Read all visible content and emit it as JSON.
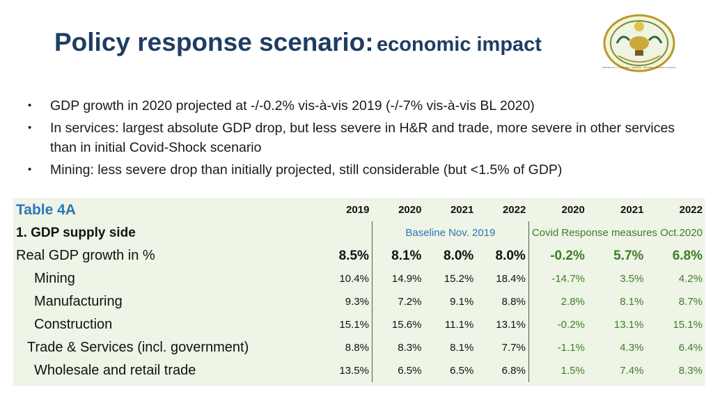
{
  "slide": {
    "title_main": "Policy response scenario:",
    "title_sub": "economic impact"
  },
  "bullets": [
    "GDP growth in 2020 projected at -/-0.2% vis-à-vis 2019 (-/-7% vis-à-vis BL 2020)",
    "In services: largest absolute GDP drop, but less severe in H&R and trade, more severe in other services than in initial Covid-Shock scenario",
    "Mining: less severe drop than initially projected, still considerable (but <1.5% of GDP)"
  ],
  "bullet_symbol": "•",
  "table": {
    "title": "Table 4A",
    "years": [
      "2019",
      "2020",
      "2021",
      "2022",
      "2020",
      "2021",
      "2022"
    ],
    "section_label": "1. GDP supply side",
    "baseline_label": "Baseline Nov. 2019",
    "covid_label": "Covid Response measures Oct.2020",
    "rows": [
      {
        "label": "Real GDP growth in %",
        "values": [
          "8.5%",
          "8.1%",
          "8.0%",
          "8.0%",
          "-0.2%",
          "5.7%",
          "6.8%"
        ]
      },
      {
        "label": "Mining",
        "values": [
          "10.4%",
          "14.9%",
          "15.2%",
          "18.4%",
          "-14.7%",
          "3.5%",
          "4.2%"
        ]
      },
      {
        "label": "Manufacturing",
        "values": [
          "9.3%",
          "7.2%",
          "9.1%",
          "8.8%",
          "2.8%",
          "8.1%",
          "8.7%"
        ]
      },
      {
        "label": "Construction",
        "values": [
          "15.1%",
          "15.6%",
          "11.1%",
          "13.1%",
          "-0.2%",
          "13.1%",
          "15.1%"
        ]
      },
      {
        "label": "Trade & Services (incl. government)",
        "values": [
          "8.8%",
          "8.3%",
          "8.1%",
          "7.7%",
          "-1.1%",
          "4.3%",
          "6.4%"
        ]
      },
      {
        "label": "Wholesale and retail trade",
        "values": [
          "13.5%",
          "6.5%",
          "6.5%",
          "6.8%",
          "1.5%",
          "7.4%",
          "8.3%"
        ]
      }
    ]
  },
  "colors": {
    "title": "#1f3d63",
    "table_title": "#2e75b6",
    "covid_green": "#3e7d28",
    "table_bg": "#eef4e6"
  },
  "seal": {
    "icon": "rwanda-coat-of-arms-icon",
    "text": "REPUBULIKA Y'U RWANDA · UBUMWE · UMURIMO · GUKUNDA IGIHUGU"
  }
}
